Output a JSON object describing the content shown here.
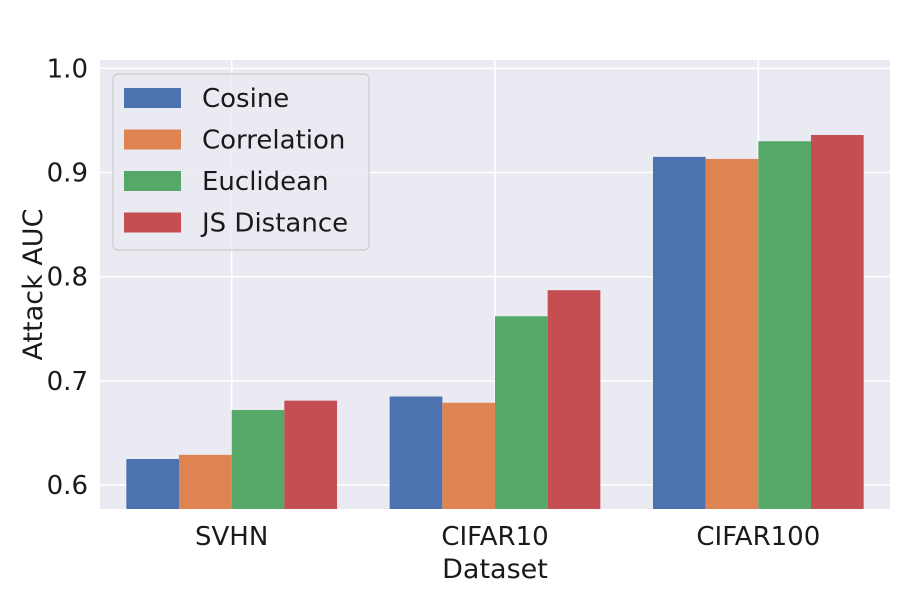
{
  "chart_data": {
    "type": "bar",
    "xlabel": "Dataset",
    "ylabel": "Attack AUC",
    "categories": [
      "SVHN",
      "CIFAR10",
      "CIFAR100"
    ],
    "ylim": [
      0.577,
      1.008
    ],
    "yticks": [
      "0.6",
      "0.7",
      "0.8",
      "0.9",
      "1.0"
    ],
    "grid": true,
    "legend_position": "top-left",
    "series": [
      {
        "name": "Cosine",
        "color": "#4c72b0",
        "values": [
          0.625,
          0.685,
          0.915
        ]
      },
      {
        "name": "Correlation",
        "color": "#dd8452",
        "values": [
          0.629,
          0.679,
          0.913
        ]
      },
      {
        "name": "Euclidean",
        "color": "#55a868",
        "values": [
          0.672,
          0.762,
          0.93
        ]
      },
      {
        "name": "JS Distance",
        "color": "#c44e52",
        "values": [
          0.681,
          0.787,
          0.936
        ]
      }
    ]
  }
}
